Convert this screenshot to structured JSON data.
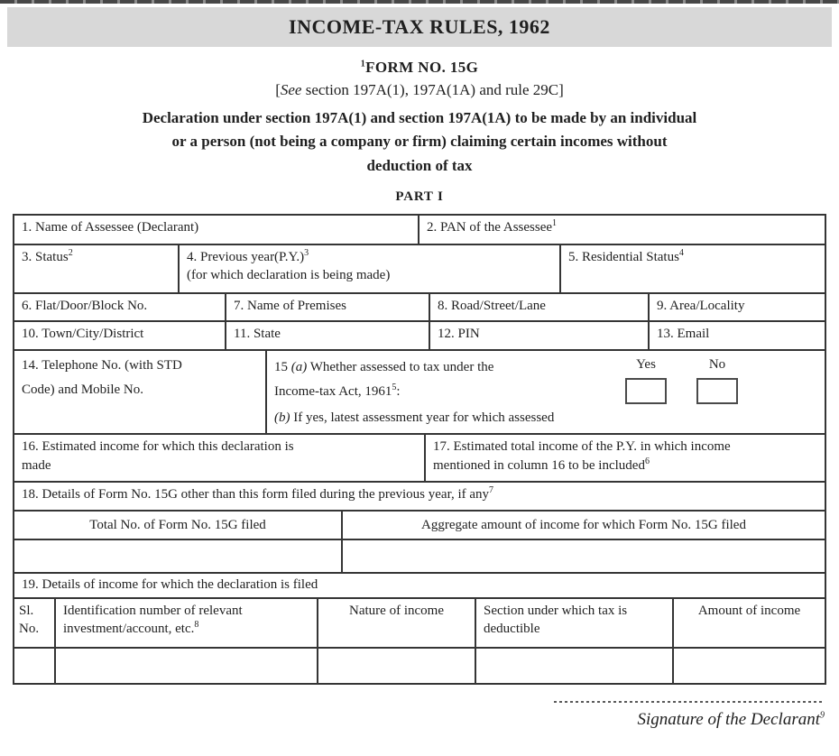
{
  "colors": {
    "title_bar_bg": "#d8d8d8",
    "table_border": "#353535",
    "text": "#1f1f1f"
  },
  "header": {
    "title": "INCOME-TAX RULES, 1962",
    "form_no_sup": "1",
    "form_no": "FORM NO. 15G",
    "see_open": "[",
    "see_word": "See",
    "see_rest": " section 197A(1), 197A(1A) and rule 29C]",
    "declaration": "Declaration under section 197A(1) and section 197A(1A) to be made by an individual or a person (not being a company or firm) claiming certain incomes without deduction of tax",
    "part_label": "PART I"
  },
  "fields": {
    "f1": {
      "label": "1. Name of Assessee (Declarant)"
    },
    "f2": {
      "label": "2. PAN of the Assessee",
      "sup": "1"
    },
    "f3": {
      "label": "3. Status",
      "sup": "2"
    },
    "f4": {
      "label": "4. Previous year(P.Y.)",
      "sup": "3",
      "note": "(for which declaration is being made)"
    },
    "f5": {
      "label": "5. Residential Status",
      "sup": "4"
    },
    "f6": {
      "label": "6. Flat/Door/Block No."
    },
    "f7": {
      "label": "7. Name of Premises"
    },
    "f8": {
      "label": "8. Road/Street/Lane"
    },
    "f9": {
      "label": "9. Area/Locality"
    },
    "f10": {
      "label": "10. Town/City/District"
    },
    "f11": {
      "label": "11. State"
    },
    "f12": {
      "label": "12. PIN"
    },
    "f13": {
      "label": "13. Email"
    },
    "f14": {
      "label": "14. Telephone No. (with STD Code) and Mobile No."
    },
    "f15a": {
      "num": "15 ",
      "letter": "(a)",
      "text": " Whether assessed to tax under the",
      "line2": "Income-tax Act, 1961",
      "sup": "5",
      "punct": ":",
      "yes": "Yes",
      "no": "No"
    },
    "f15b": {
      "letter": "(b)",
      "text": " If yes, latest assessment year for which assessed"
    },
    "f16": {
      "label": "16. Estimated income for which this declaration is made"
    },
    "f17": {
      "label": "17. Estimated total income of the P.Y. in which income mentioned in column 16 to be included",
      "sup": "6"
    },
    "f18": {
      "label": "18. Details of Form No. 15G other than this form filed during the previous year, if any",
      "sup": "7"
    },
    "f18_total": {
      "label": "Total No. of Form No. 15G filed"
    },
    "f18_aggregate": {
      "label": "Aggregate amount of income for which Form No. 15G filed"
    },
    "f19": {
      "label": "19. Details of income for which the declaration is filed"
    },
    "table19": {
      "sl": "Sl. No.",
      "ident": {
        "label": "Identification number of relevant investment/account, etc.",
        "sup": "8"
      },
      "nature": "Nature of income",
      "section": "Section under which tax is deductible",
      "amount": "Amount of income"
    }
  },
  "footer": {
    "signature": "Signature of the Declarant",
    "sup": "9"
  }
}
